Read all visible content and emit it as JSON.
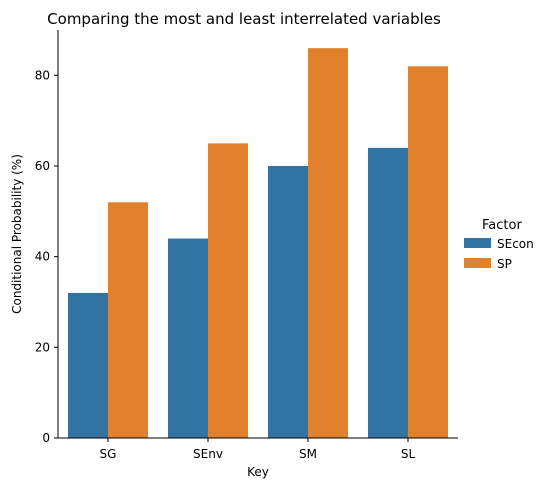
{
  "chart_data": {
    "type": "bar",
    "title": "Comparing the most and least interrelated variables",
    "xlabel": "Key",
    "ylabel": "Conditional Probability (%)",
    "categories": [
      "SG",
      "SEnv",
      "SM",
      "SL"
    ],
    "series": [
      {
        "name": "SEcon",
        "color": "#3274a1",
        "values": [
          32,
          44,
          60,
          64
        ]
      },
      {
        "name": "SP",
        "color": "#e1812c",
        "values": [
          52,
          65,
          86,
          82
        ]
      }
    ],
    "ylim": [
      0,
      90
    ],
    "yticks": [
      0,
      20,
      40,
      60,
      80
    ],
    "grid": false,
    "legend": {
      "title": "Factor",
      "placement": "right"
    }
  }
}
